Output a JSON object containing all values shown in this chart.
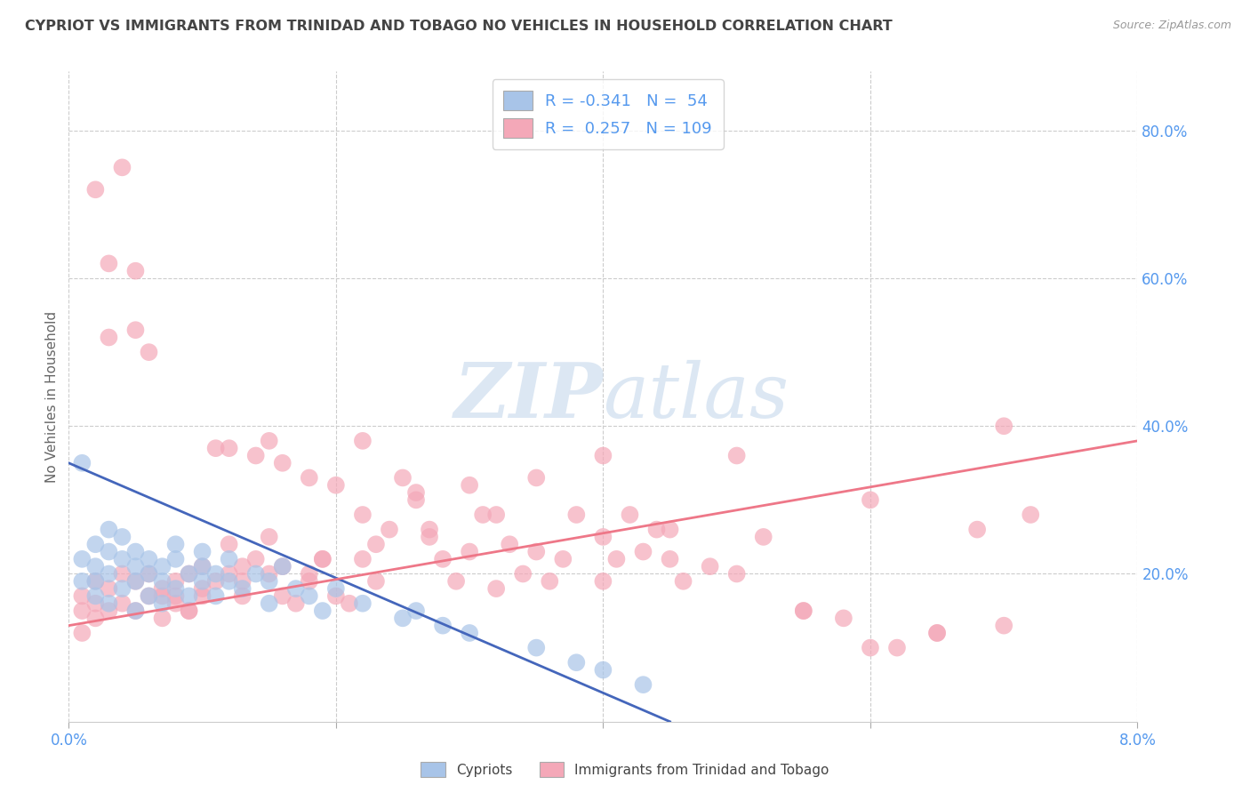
{
  "title": "CYPRIOT VS IMMIGRANTS FROM TRINIDAD AND TOBAGO NO VEHICLES IN HOUSEHOLD CORRELATION CHART",
  "source": "Source: ZipAtlas.com",
  "ylabel": "No Vehicles in Household",
  "right_yticks": [
    "80.0%",
    "60.0%",
    "40.0%",
    "20.0%"
  ],
  "right_ytick_vals": [
    0.8,
    0.6,
    0.4,
    0.2
  ],
  "x_min": 0.0,
  "x_max": 0.08,
  "y_min": 0.0,
  "y_max": 0.88,
  "legend_line1": "R = -0.341   N =  54",
  "legend_line2": "R =  0.257   N = 109",
  "blue_color": "#a8c4e8",
  "pink_color": "#f4a8b8",
  "blue_line_color": "#4466bb",
  "pink_line_color": "#ee7788",
  "title_color": "#444444",
  "axis_label_color": "#5599ee",
  "watermark_zip": "ZIP",
  "watermark_atlas": "atlas",
  "blue_line_x0": 0.0,
  "blue_line_x1": 0.045,
  "blue_line_y0": 0.35,
  "blue_line_y1": 0.0,
  "pink_line_x0": 0.0,
  "pink_line_x1": 0.08,
  "pink_line_y0": 0.13,
  "pink_line_y1": 0.38,
  "blue_scatter_x": [
    0.001,
    0.001,
    0.001,
    0.002,
    0.002,
    0.002,
    0.002,
    0.003,
    0.003,
    0.003,
    0.003,
    0.004,
    0.004,
    0.004,
    0.005,
    0.005,
    0.005,
    0.005,
    0.006,
    0.006,
    0.006,
    0.007,
    0.007,
    0.007,
    0.008,
    0.008,
    0.008,
    0.009,
    0.009,
    0.01,
    0.01,
    0.01,
    0.011,
    0.011,
    0.012,
    0.012,
    0.013,
    0.014,
    0.015,
    0.015,
    0.016,
    0.017,
    0.018,
    0.019,
    0.02,
    0.022,
    0.025,
    0.026,
    0.028,
    0.03,
    0.035,
    0.038,
    0.04,
    0.043
  ],
  "blue_scatter_y": [
    0.22,
    0.19,
    0.35,
    0.21,
    0.19,
    0.24,
    0.17,
    0.2,
    0.23,
    0.26,
    0.16,
    0.22,
    0.18,
    0.25,
    0.21,
    0.19,
    0.23,
    0.15,
    0.2,
    0.22,
    0.17,
    0.19,
    0.21,
    0.16,
    0.22,
    0.18,
    0.24,
    0.2,
    0.17,
    0.21,
    0.19,
    0.23,
    0.2,
    0.17,
    0.19,
    0.22,
    0.18,
    0.2,
    0.16,
    0.19,
    0.21,
    0.18,
    0.17,
    0.15,
    0.18,
    0.16,
    0.14,
    0.15,
    0.13,
    0.12,
    0.1,
    0.08,
    0.07,
    0.05
  ],
  "pink_scatter_x": [
    0.001,
    0.001,
    0.001,
    0.002,
    0.002,
    0.002,
    0.003,
    0.003,
    0.003,
    0.004,
    0.004,
    0.005,
    0.005,
    0.005,
    0.006,
    0.006,
    0.007,
    0.007,
    0.008,
    0.008,
    0.009,
    0.009,
    0.01,
    0.01,
    0.011,
    0.011,
    0.012,
    0.012,
    0.013,
    0.013,
    0.014,
    0.014,
    0.015,
    0.015,
    0.016,
    0.016,
    0.017,
    0.018,
    0.018,
    0.019,
    0.02,
    0.02,
    0.021,
    0.022,
    0.022,
    0.023,
    0.024,
    0.025,
    0.026,
    0.027,
    0.028,
    0.029,
    0.03,
    0.031,
    0.032,
    0.033,
    0.034,
    0.035,
    0.036,
    0.037,
    0.038,
    0.04,
    0.04,
    0.041,
    0.042,
    0.043,
    0.044,
    0.045,
    0.046,
    0.048,
    0.05,
    0.052,
    0.055,
    0.058,
    0.06,
    0.062,
    0.065,
    0.068,
    0.07,
    0.072,
    0.003,
    0.005,
    0.007,
    0.009,
    0.012,
    0.015,
    0.018,
    0.022,
    0.026,
    0.03,
    0.035,
    0.04,
    0.045,
    0.05,
    0.055,
    0.06,
    0.065,
    0.07,
    0.002,
    0.004,
    0.006,
    0.008,
    0.01,
    0.013,
    0.016,
    0.019,
    0.023,
    0.027,
    0.032
  ],
  "pink_scatter_y": [
    0.17,
    0.15,
    0.12,
    0.19,
    0.16,
    0.14,
    0.52,
    0.18,
    0.15,
    0.2,
    0.16,
    0.53,
    0.19,
    0.15,
    0.5,
    0.17,
    0.18,
    0.14,
    0.19,
    0.16,
    0.2,
    0.15,
    0.21,
    0.17,
    0.37,
    0.19,
    0.37,
    0.2,
    0.21,
    0.17,
    0.22,
    0.36,
    0.38,
    0.2,
    0.35,
    0.17,
    0.16,
    0.33,
    0.19,
    0.22,
    0.32,
    0.17,
    0.16,
    0.22,
    0.38,
    0.19,
    0.26,
    0.33,
    0.31,
    0.25,
    0.22,
    0.19,
    0.23,
    0.28,
    0.18,
    0.24,
    0.2,
    0.23,
    0.19,
    0.22,
    0.28,
    0.25,
    0.19,
    0.22,
    0.28,
    0.23,
    0.26,
    0.22,
    0.19,
    0.21,
    0.2,
    0.25,
    0.15,
    0.14,
    0.3,
    0.1,
    0.12,
    0.26,
    0.13,
    0.28,
    0.62,
    0.61,
    0.17,
    0.15,
    0.24,
    0.25,
    0.2,
    0.28,
    0.3,
    0.32,
    0.33,
    0.36,
    0.26,
    0.36,
    0.15,
    0.1,
    0.12,
    0.4,
    0.72,
    0.75,
    0.2,
    0.17,
    0.18,
    0.19,
    0.21,
    0.22,
    0.24,
    0.26,
    0.28
  ]
}
